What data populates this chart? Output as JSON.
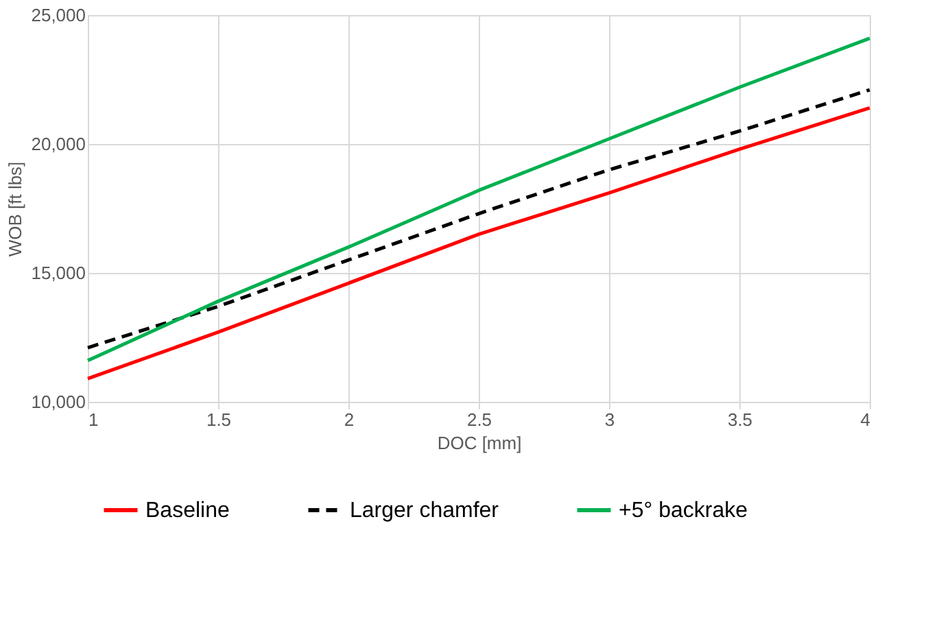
{
  "chart_data": {
    "type": "line",
    "xlabel": "DOC [mm]",
    "ylabel": "WOB [ft lbs]",
    "x": [
      1,
      1.5,
      2,
      2.5,
      3,
      3.5,
      4
    ],
    "series": [
      {
        "name": "Baseline",
        "color": "#ff0000",
        "line_style": "solid",
        "values": [
          10900,
          12700,
          14600,
          16500,
          18100,
          19800,
          21400
        ]
      },
      {
        "name": "Larger chamfer",
        "color": "#000000",
        "line_style": "dashed",
        "values": [
          12100,
          13700,
          15500,
          17300,
          19000,
          20500,
          22100
        ]
      },
      {
        "name": "+5° backrake",
        "color": "#00b050",
        "line_style": "solid",
        "values": [
          11600,
          13900,
          16000,
          18200,
          20200,
          22200,
          24100
        ]
      }
    ],
    "xlim": [
      1,
      4
    ],
    "xticks": [
      1,
      1.5,
      2,
      2.5,
      3,
      3.5,
      4
    ],
    "ylim": [
      10000,
      25000
    ],
    "yticks": [
      {
        "value": 10000,
        "label": "10,000"
      },
      {
        "value": 15000,
        "label": "15,000"
      },
      {
        "value": 20000,
        "label": "20,000"
      },
      {
        "value": 25000,
        "label": "25,000"
      }
    ],
    "grid": true,
    "legend": "bottom",
    "marker": "none"
  }
}
